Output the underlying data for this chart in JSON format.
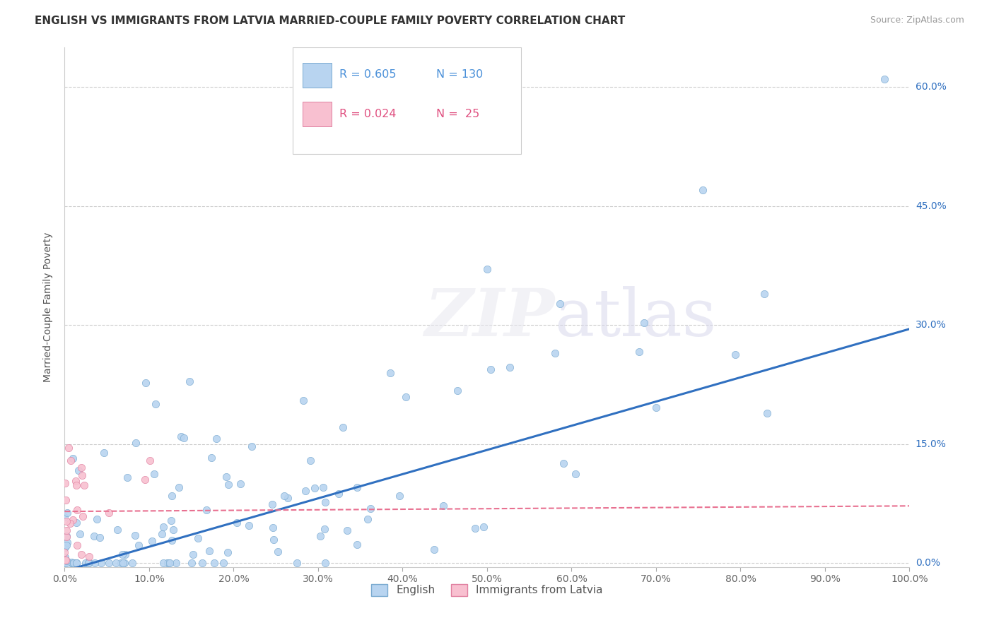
{
  "title": "ENGLISH VS IMMIGRANTS FROM LATVIA MARRIED-COUPLE FAMILY POVERTY CORRELATION CHART",
  "source_text": "Source: ZipAtlas.com",
  "ylabel": "Married-Couple Family Poverty",
  "watermark": "ZIPatlas",
  "legend_entries": [
    {
      "label": "English",
      "R": 0.605,
      "N": 130,
      "color": "#b8d4f0",
      "edge_color": "#7aaad0",
      "text_color": "#4a90d9"
    },
    {
      "label": "Immigrants from Latvia",
      "R": 0.024,
      "N": 25,
      "color": "#f8c0d0",
      "edge_color": "#e080a0",
      "text_color": "#e05080"
    }
  ],
  "right_ytick_labels": [
    "0.0%",
    "15.0%",
    "30.0%",
    "45.0%",
    "60.0%"
  ],
  "right_ytick_values": [
    0.0,
    0.15,
    0.3,
    0.45,
    0.6
  ],
  "xlim": [
    0.0,
    1.0
  ],
  "ylim": [
    -0.005,
    0.65
  ],
  "background_color": "#ffffff",
  "trend_color_english": "#3070c0",
  "trend_color_latvia": "#e87090",
  "grid_color": "#cccccc",
  "dot_size": 55
}
